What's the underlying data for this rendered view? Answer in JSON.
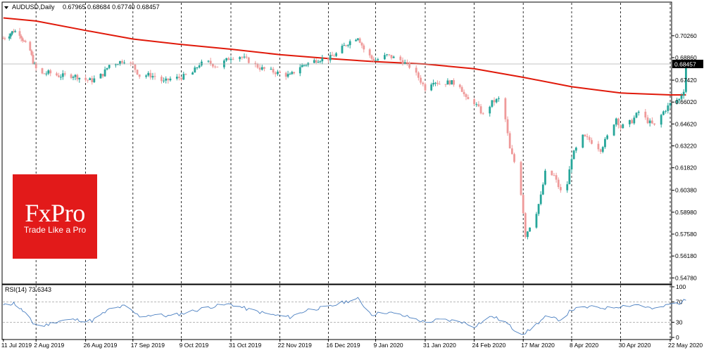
{
  "chart_data": [
    {
      "type": "candlestick",
      "panel": "main",
      "symbol": "AUDUSD",
      "timeframe": "Daily",
      "title": "AUDUSD,Daily",
      "ohlc_header": [
        "0.67965",
        "0.68684",
        "0.67740",
        "0.68457"
      ],
      "last_price_label": "0.68457",
      "ylim": [
        0.5448,
        0.7232
      ],
      "y_ticks": [
        "0.70260",
        "0.68860",
        "0.67420",
        "0.66020",
        "0.64620",
        "0.63220",
        "0.61820",
        "0.60380",
        "0.58980",
        "0.57580",
        "0.56180",
        "0.54780"
      ],
      "x_ticks": [
        "11 Jul 2019",
        "2 Aug 2019",
        "26 Aug 2019",
        "17 Sep 2019",
        "9 Oct 2019",
        "31 Oct 2019",
        "22 Nov 2019",
        "16 Dec 2019",
        "9 Jan 2020",
        "31 Jan 2020",
        "24 Feb 2020",
        "17 Mar 2020",
        "8 Apr 2020",
        "30 Apr 2020",
        "22 May 2020"
      ],
      "close_path": [
        [
          "11 Jul 2019",
          0.701
        ],
        [
          "15 Jul 2019",
          0.7035
        ],
        [
          "18 Jul 2019",
          0.7058
        ],
        [
          "22 Jul 2019",
          0.704
        ],
        [
          "25 Jul 2019",
          0.6985
        ],
        [
          "29 Jul 2019",
          0.693
        ],
        [
          "31 Jul 2019",
          0.686
        ],
        [
          "2 Aug 2019",
          0.6815
        ],
        [
          "5 Aug 2019",
          0.678
        ],
        [
          "8 Aug 2019",
          0.679
        ],
        [
          "13 Aug 2019",
          0.677
        ],
        [
          "20 Aug 2019",
          0.6772
        ],
        [
          "26 Aug 2019",
          0.6745
        ],
        [
          "29 Aug 2019",
          0.674
        ],
        [
          "3 Sep 2019",
          0.678
        ],
        [
          "6 Sep 2019",
          0.684
        ],
        [
          "10 Sep 2019",
          0.6855
        ],
        [
          "13 Sep 2019",
          0.687
        ],
        [
          "17 Sep 2019",
          0.6835
        ],
        [
          "20 Sep 2019",
          0.677
        ],
        [
          "24 Sep 2019",
          0.6775
        ],
        [
          "27 Sep 2019",
          0.6765
        ],
        [
          "1 Oct 2019",
          0.673
        ],
        [
          "4 Oct 2019",
          0.675
        ],
        [
          "9 Oct 2019",
          0.676
        ],
        [
          "14 Oct 2019",
          0.679
        ],
        [
          "17 Oct 2019",
          0.6845
        ],
        [
          "21 Oct 2019",
          0.6855
        ],
        [
          "25 Oct 2019",
          0.683
        ],
        [
          "31 Oct 2019",
          0.689
        ],
        [
          "4 Nov 2019",
          0.6895
        ],
        [
          "8 Nov 2019",
          0.6865
        ],
        [
          "13 Nov 2019",
          0.682
        ],
        [
          "18 Nov 2019",
          0.68
        ],
        [
          "22 Nov 2019",
          0.6785
        ],
        [
          "27 Nov 2019",
          0.677
        ],
        [
          "2 Dec 2019",
          0.683
        ],
        [
          "6 Dec 2019",
          0.685
        ],
        [
          "11 Dec 2019",
          0.6875
        ],
        [
          "16 Dec 2019",
          0.688
        ],
        [
          "20 Dec 2019",
          0.691
        ],
        [
          "24 Dec 2019",
          0.696
        ],
        [
          "27 Dec 2019",
          0.699
        ],
        [
          "31 Dec 2019",
          0.702
        ],
        [
          "3 Jan 2020",
          0.694
        ],
        [
          "7 Jan 2020",
          0.688
        ],
        [
          "9 Jan 2020",
          0.687
        ],
        [
          "14 Jan 2020",
          0.69
        ],
        [
          "20 Jan 2020",
          0.687
        ],
        [
          "24 Jan 2020",
          0.683
        ],
        [
          "28 Jan 2020",
          0.676
        ],
        [
          "31 Jan 2020",
          0.669
        ],
        [
          "4 Feb 2020",
          0.674
        ],
        [
          "7 Feb 2020",
          0.672
        ],
        [
          "12 Feb 2020",
          0.673
        ],
        [
          "17 Feb 2020",
          0.671
        ],
        [
          "20 Feb 2020",
          0.662
        ],
        [
          "24 Feb 2020",
          0.66
        ],
        [
          "28 Feb 2020",
          0.652
        ],
        [
          "3 Mar 2020",
          0.66
        ],
        [
          "6 Mar 2020",
          0.662
        ],
        [
          "9 Mar 2020",
          0.649
        ],
        [
          "11 Mar 2020",
          0.63
        ],
        [
          "13 Mar 2020",
          0.622
        ],
        [
          "16 Mar 2020",
          0.602
        ],
        [
          "17 Mar 2020",
          0.59
        ],
        [
          "18 Mar 2020",
          0.575
        ],
        [
          "19 Mar 2020",
          0.578
        ],
        [
          "23 Mar 2020",
          0.59
        ],
        [
          "25 Mar 2020",
          0.6
        ],
        [
          "27 Mar 2020",
          0.615
        ],
        [
          "31 Mar 2020",
          0.613
        ],
        [
          "3 Apr 2020",
          0.603
        ],
        [
          "6 Apr 2020",
          0.608
        ],
        [
          "8 Apr 2020",
          0.625
        ],
        [
          "13 Apr 2020",
          0.638
        ],
        [
          "16 Apr 2020",
          0.636
        ],
        [
          "21 Apr 2020",
          0.63
        ],
        [
          "24 Apr 2020",
          0.638
        ],
        [
          "28 Apr 2020",
          0.65
        ],
        [
          "30 Apr 2020",
          0.644
        ],
        [
          "5 May 2020",
          0.648
        ],
        [
          "8 May 2020",
          0.654
        ],
        [
          "12 May 2020",
          0.648
        ],
        [
          "15 May 2020",
          0.645
        ],
        [
          "19 May 2020",
          0.654
        ],
        [
          "22 May 2020",
          0.659
        ],
        [
          "26 May 2020",
          0.662
        ],
        [
          "28 May 2020",
          0.668
        ],
        [
          "29 May 2020",
          0.6845
        ]
      ],
      "moving_average_path": [
        [
          "11 Jul 2019",
          0.714
        ],
        [
          "2 Aug 2019",
          0.712
        ],
        [
          "26 Aug 2019",
          0.706
        ],
        [
          "17 Sep 2019",
          0.7005
        ],
        [
          "9 Oct 2019",
          0.697
        ],
        [
          "31 Oct 2019",
          0.694
        ],
        [
          "22 Nov 2019",
          0.6905
        ],
        [
          "16 Dec 2019",
          0.688
        ],
        [
          "9 Jan 2020",
          0.686
        ],
        [
          "31 Jan 2020",
          0.6845
        ],
        [
          "24 Feb 2020",
          0.6815
        ],
        [
          "17 Mar 2020",
          0.676
        ],
        [
          "8 Apr 2020",
          0.67
        ],
        [
          "30 Apr 2020",
          0.666
        ],
        [
          "22 May 2020",
          0.6648
        ],
        [
          "29 May 2020",
          0.6648
        ]
      ],
      "colors": {
        "up": "#26a69a",
        "down": "#ef9a9a",
        "moving_average": "#e0190a",
        "grid": "#000000",
        "axis_text": "#000000"
      }
    },
    {
      "type": "line",
      "panel": "indicator",
      "title": "RSI(14) 73.6343",
      "ylim": [
        0,
        100
      ],
      "y_ticks": [
        "100",
        "70",
        "30",
        "0"
      ],
      "levels": [
        70,
        30
      ],
      "series": [
        {
          "color": "#4a7fc1",
          "values": [
            [
              "11 Jul 2019",
              63
            ],
            [
              "18 Jul 2019",
              68
            ],
            [
              "25 Jul 2019",
              50
            ],
            [
              "31 Jul 2019",
              28
            ],
            [
              "5 Aug 2019",
              22
            ],
            [
              "13 Aug 2019",
              33
            ],
            [
              "20 Aug 2019",
              35
            ],
            [
              "29 Aug 2019",
              33
            ],
            [
              "6 Sep 2019",
              55
            ],
            [
              "13 Sep 2019",
              62
            ],
            [
              "20 Sep 2019",
              42
            ],
            [
              "27 Sep 2019",
              45
            ],
            [
              "4 Oct 2019",
              42
            ],
            [
              "14 Oct 2019",
              52
            ],
            [
              "21 Oct 2019",
              60
            ],
            [
              "31 Oct 2019",
              66
            ],
            [
              "8 Nov 2019",
              55
            ],
            [
              "18 Nov 2019",
              45
            ],
            [
              "27 Nov 2019",
              40
            ],
            [
              "6 Dec 2019",
              55
            ],
            [
              "16 Dec 2019",
              60
            ],
            [
              "24 Dec 2019",
              70
            ],
            [
              "31 Dec 2019",
              76
            ],
            [
              "7 Jan 2020",
              45
            ],
            [
              "14 Jan 2020",
              50
            ],
            [
              "24 Jan 2020",
              40
            ],
            [
              "31 Jan 2020",
              30
            ],
            [
              "7 Feb 2020",
              35
            ],
            [
              "17 Feb 2020",
              32
            ],
            [
              "24 Feb 2020",
              22
            ],
            [
              "3 Mar 2020",
              42
            ],
            [
              "9 Mar 2020",
              30
            ],
            [
              "13 Mar 2020",
              15
            ],
            [
              "17 Mar 2020",
              8
            ],
            [
              "19 Mar 2020",
              12
            ],
            [
              "27 Mar 2020",
              40
            ],
            [
              "3 Apr 2020",
              35
            ],
            [
              "8 Apr 2020",
              55
            ],
            [
              "16 Apr 2020",
              60
            ],
            [
              "24 Apr 2020",
              58
            ],
            [
              "30 Apr 2020",
              62
            ],
            [
              "8 May 2020",
              65
            ],
            [
              "15 May 2020",
              55
            ],
            [
              "22 May 2020",
              66
            ],
            [
              "26 May 2020",
              68
            ],
            [
              "29 May 2020",
              74
            ]
          ]
        }
      ]
    }
  ],
  "logo": {
    "text": "FxPro",
    "tagline": "Trade Like a Pro",
    "color": "#e21a1a"
  }
}
